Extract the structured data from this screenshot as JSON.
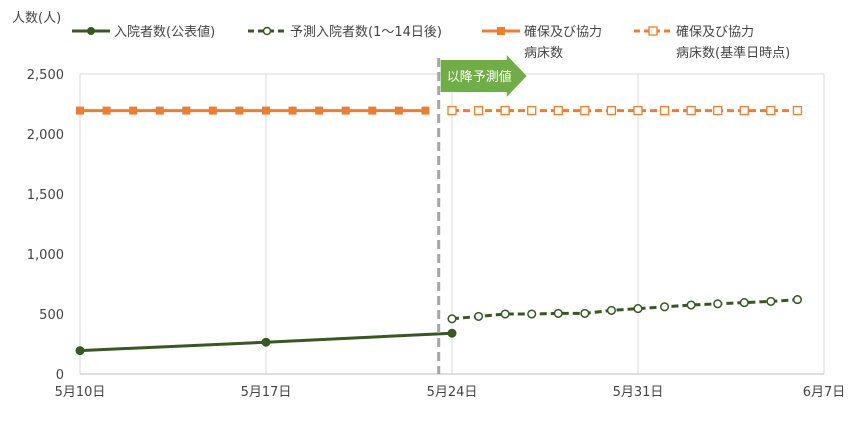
{
  "chart_data": {
    "type": "line",
    "ylabel": "人数(人)",
    "ylim": [
      0,
      2500
    ],
    "yticks": [
      0,
      500,
      1000,
      1500,
      2000,
      2500
    ],
    "ytick_labels": [
      "0",
      "500",
      "1,000",
      "1,500",
      "2,000",
      "2,500"
    ],
    "xlim": [
      "2021-05-10",
      "2021-06-07"
    ],
    "xticks": [
      "2021-05-10",
      "2021-05-17",
      "2021-05-24",
      "2021-05-31",
      "2021-06-07"
    ],
    "xtick_labels": [
      "5月10日",
      "5月17日",
      "5月24日",
      "5月31日",
      "6月7日"
    ],
    "grid": "vertical",
    "legend_position": "top",
    "annotation": {
      "text": "以降予測値",
      "x": "2021-05-23"
    },
    "series": [
      {
        "name": "入院者数(公表値)",
        "color": "#385723",
        "style": "solid",
        "marker": "filled-circle",
        "x": [
          "2021-05-10",
          "2021-05-17",
          "2021-05-24"
        ],
        "y": [
          195,
          265,
          340
        ]
      },
      {
        "name": "予測入院者数(1～14日後)",
        "color": "#385723",
        "style": "dashed",
        "marker": "open-circle",
        "x": [
          "2021-05-24",
          "2021-05-25",
          "2021-05-26",
          "2021-05-27",
          "2021-05-28",
          "2021-05-29",
          "2021-05-30",
          "2021-05-31",
          "2021-06-01",
          "2021-06-02",
          "2021-06-03",
          "2021-06-04",
          "2021-06-05",
          "2021-06-06"
        ],
        "y": [
          460,
          480,
          500,
          500,
          505,
          505,
          530,
          545,
          560,
          575,
          585,
          595,
          605,
          620
        ]
      },
      {
        "name": "確保及び協力病床数",
        "color": "#ED7D31",
        "style": "solid",
        "marker": "filled-square",
        "x": [
          "2021-05-10",
          "2021-05-11",
          "2021-05-12",
          "2021-05-13",
          "2021-05-14",
          "2021-05-15",
          "2021-05-16",
          "2021-05-17",
          "2021-05-18",
          "2021-05-19",
          "2021-05-20",
          "2021-05-21",
          "2021-05-22",
          "2021-05-23"
        ],
        "y": [
          2195,
          2195,
          2195,
          2195,
          2195,
          2195,
          2195,
          2195,
          2195,
          2195,
          2195,
          2195,
          2195,
          2195
        ]
      },
      {
        "name": "確保及び協力病床数(基準日時点)",
        "color": "#ED7D31",
        "style": "dashed",
        "marker": "open-square",
        "x": [
          "2021-05-24",
          "2021-05-25",
          "2021-05-26",
          "2021-05-27",
          "2021-05-28",
          "2021-05-29",
          "2021-05-30",
          "2021-05-31",
          "2021-06-01",
          "2021-06-02",
          "2021-06-03",
          "2021-06-04",
          "2021-06-05",
          "2021-06-06"
        ],
        "y": [
          2195,
          2195,
          2195,
          2195,
          2195,
          2195,
          2195,
          2195,
          2195,
          2195,
          2195,
          2195,
          2195,
          2195
        ]
      }
    ]
  }
}
